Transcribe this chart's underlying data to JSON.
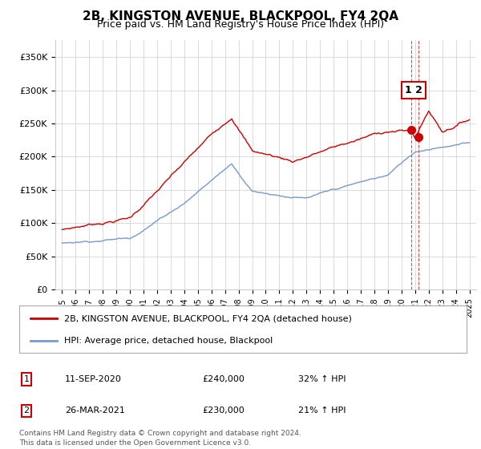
{
  "title": "2B, KINGSTON AVENUE, BLACKPOOL, FY4 2QA",
  "subtitle": "Price paid vs. HM Land Registry's House Price Index (HPI)",
  "legend_line1": "2B, KINGSTON AVENUE, BLACKPOOL, FY4 2QA (detached house)",
  "legend_line2": "HPI: Average price, detached house, Blackpool",
  "footnote1": "Contains HM Land Registry data © Crown copyright and database right 2024.",
  "footnote2": "This data is licensed under the Open Government Licence v3.0.",
  "table_row1": [
    "1",
    "11-SEP-2020",
    "£240,000",
    "32% ↑ HPI"
  ],
  "table_row2": [
    "2",
    "26-MAR-2021",
    "£230,000",
    "21% ↑ HPI"
  ],
  "red_color": "#cc0000",
  "blue_color": "#7799cc",
  "marker1_x": 2020.7,
  "marker1_y": 240000,
  "marker2_x": 2021.24,
  "marker2_y": 230000,
  "ylim": [
    0,
    375000
  ],
  "yticks": [
    0,
    50000,
    100000,
    150000,
    200000,
    250000,
    300000,
    350000
  ],
  "ytick_labels": [
    "£0",
    "£50K",
    "£100K",
    "£150K",
    "£200K",
    "£250K",
    "£300K",
    "£350K"
  ],
  "xmin": 1994.5,
  "xmax": 2025.5,
  "vline1_x": 2020.7,
  "vline2_x": 2021.24,
  "background_color": "#ffffff",
  "grid_color": "#cccccc"
}
